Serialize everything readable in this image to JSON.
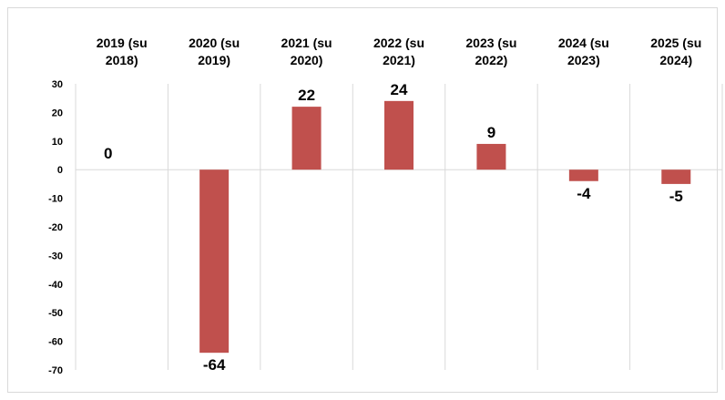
{
  "chart_data": {
    "type": "bar",
    "categories": [
      [
        "2019 (su",
        "2018)"
      ],
      [
        "2020 (su",
        "2019)"
      ],
      [
        "2021 (su",
        "2020)"
      ],
      [
        "2022 (su",
        "2021)"
      ],
      [
        "2023 (su",
        "2022)"
      ],
      [
        "2024 (su",
        "2023)"
      ],
      [
        "2025 (su",
        "2024)"
      ]
    ],
    "values": [
      0,
      -64,
      22,
      24,
      9,
      -4,
      -5
    ],
    "data_labels": [
      "0",
      "-64",
      "22",
      "24",
      "9",
      "-4",
      "-5"
    ],
    "yticks": [
      30,
      20,
      10,
      0,
      -10,
      -20,
      -30,
      -40,
      -50,
      -60,
      -70
    ],
    "ylim": [
      -70,
      30
    ],
    "category_axis_position": "top",
    "grid": "vertical",
    "bar_color": "#c0504d",
    "grid_color": "#d9d9d9"
  }
}
